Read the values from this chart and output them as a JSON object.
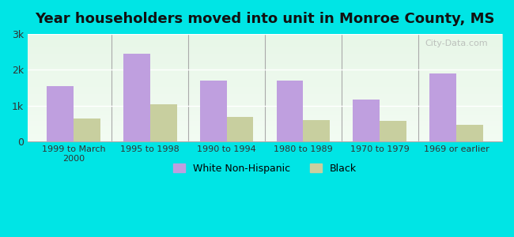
{
  "title": "Year householders moved into unit in Monroe County, MS",
  "categories": [
    "1999 to March\n2000",
    "1995 to 1998",
    "1990 to 1994",
    "1980 to 1989",
    "1970 to 1979",
    "1969 or earlier"
  ],
  "white_values": [
    1550,
    2450,
    1700,
    1700,
    1175,
    1900
  ],
  "black_values": [
    650,
    1050,
    700,
    600,
    580,
    470
  ],
  "white_color": "#bf9fdf",
  "black_color": "#c8cf9f",
  "bg_outer": "#00e5e5",
  "bg_plot_top": "#e8f5e8",
  "bg_plot_bottom": "#f5fff5",
  "ylim": [
    0,
    3000
  ],
  "yticks": [
    0,
    1000,
    2000,
    3000
  ],
  "ytick_labels": [
    "0",
    "1k",
    "2k",
    "3k"
  ],
  "legend_labels": [
    "White Non-Hispanic",
    "Black"
  ],
  "watermark": "City-Data.com"
}
